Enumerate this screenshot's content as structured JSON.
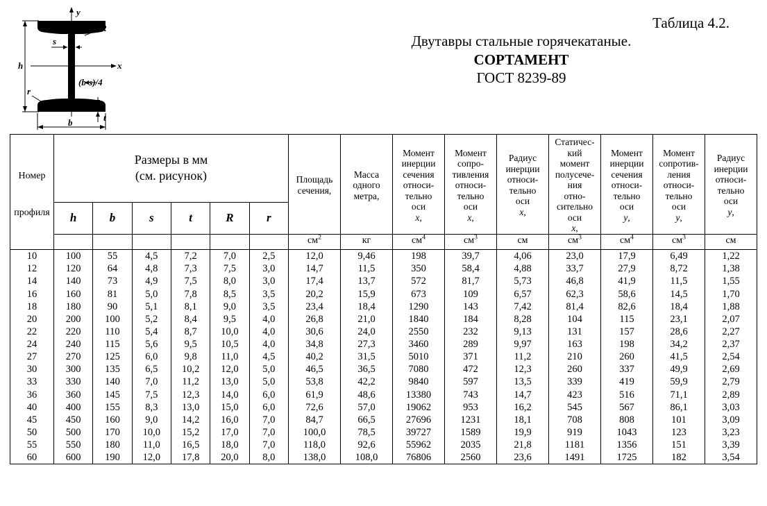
{
  "heading": {
    "table_no": "Таблица 4.2.",
    "subtitle": "Двутавры стальные горячекатаные.",
    "sortament": "СОРТАМЕНТ",
    "gost": "ГОСТ 8239-89"
  },
  "diagram_labels": {
    "y": "y",
    "R": "R",
    "s": "s",
    "x": "x",
    "h": "h",
    "bs4": "(b-s)/4",
    "r": "r",
    "t": "t",
    "b": "b"
  },
  "table": {
    "col_profile_top": "Номер",
    "col_profile_bot": "профиля",
    "dim_header_l1": "Размеры в мм",
    "dim_header_l2": "(см. рисунок)",
    "dim_labels": [
      "h",
      "b",
      "s",
      "t",
      "R",
      "r"
    ],
    "value_headers": [
      "Площадь сечения,",
      "Масса одного метра,",
      "Момент инерции сечения относи- тельно оси <i>x</i>,",
      "Момент сопро- тивления относи- тельно оси <i>x</i>,",
      "Радиус инерции относи- тельно оси <i>x</i>,",
      "Статичес- кий момент полусече- ния отно- сительно оси <i>x</i>,",
      "Момент инерции сечения относи- тельно оси <i>y</i>,",
      "Момент сопротив- ления относи- тельно оси <i>y</i>,",
      "Радиус инерции относи- тельно оси <i>y</i>,"
    ],
    "value_units": [
      "см<sup>2</sup>",
      "кг",
      "см<sup>4</sup>",
      "см<sup>3</sup>",
      "см",
      "см<sup>3</sup>",
      "см<sup>4</sup>",
      "см<sup>3</sup>",
      "см"
    ],
    "rows": [
      [
        "10",
        "100",
        "55",
        "4,5",
        "7,2",
        "7,0",
        "2,5",
        "12,0",
        "9,46",
        "198",
        "39,7",
        "4,06",
        "23,0",
        "17,9",
        "6,49",
        "1,22"
      ],
      [
        "12",
        "120",
        "64",
        "4,8",
        "7,3",
        "7,5",
        "3,0",
        "14,7",
        "11,5",
        "350",
        "58,4",
        "4,88",
        "33,7",
        "27,9",
        "8,72",
        "1,38"
      ],
      [
        "14",
        "140",
        "73",
        "4,9",
        "7,5",
        "8,0",
        "3,0",
        "17,4",
        "13,7",
        "572",
        "81,7",
        "5,73",
        "46,8",
        "41,9",
        "11,5",
        "1,55"
      ],
      [
        "16",
        "160",
        "81",
        "5,0",
        "7,8",
        "8,5",
        "3,5",
        "20,2",
        "15,9",
        "673",
        "109",
        "6,57",
        "62,3",
        "58,6",
        "14,5",
        "1,70"
      ],
      [
        "18",
        "180",
        "90",
        "5,1",
        "8,1",
        "9,0",
        "3,5",
        "23,4",
        "18,4",
        "1290",
        "143",
        "7,42",
        "81,4",
        "82,6",
        "18,4",
        "1,88"
      ],
      [
        "20",
        "200",
        "100",
        "5,2",
        "8,4",
        "9,5",
        "4,0",
        "26,8",
        "21,0",
        "1840",
        "184",
        "8,28",
        "104",
        "115",
        "23,1",
        "2,07"
      ],
      [
        "22",
        "220",
        "110",
        "5,4",
        "8,7",
        "10,0",
        "4,0",
        "30,6",
        "24,0",
        "2550",
        "232",
        "9,13",
        "131",
        "157",
        "28,6",
        "2,27"
      ],
      [
        "24",
        "240",
        "115",
        "5,6",
        "9,5",
        "10,5",
        "4,0",
        "34,8",
        "27,3",
        "3460",
        "289",
        "9,97",
        "163",
        "198",
        "34,2",
        "2,37"
      ],
      [
        "27",
        "270",
        "125",
        "6,0",
        "9,8",
        "11,0",
        "4,5",
        "40,2",
        "31,5",
        "5010",
        "371",
        "11,2",
        "210",
        "260",
        "41,5",
        "2,54"
      ],
      [
        "30",
        "300",
        "135",
        "6,5",
        "10,2",
        "12,0",
        "5,0",
        "46,5",
        "36,5",
        "7080",
        "472",
        "12,3",
        "260",
        "337",
        "49,9",
        "2,69"
      ],
      [
        "33",
        "330",
        "140",
        "7,0",
        "11,2",
        "13,0",
        "5,0",
        "53,8",
        "42,2",
        "9840",
        "597",
        "13,5",
        "339",
        "419",
        "59,9",
        "2,79"
      ],
      [
        "36",
        "360",
        "145",
        "7,5",
        "12,3",
        "14,0",
        "6,0",
        "61,9",
        "48,6",
        "13380",
        "743",
        "14,7",
        "423",
        "516",
        "71,1",
        "2,89"
      ],
      [
        "40",
        "400",
        "155",
        "8,3",
        "13,0",
        "15,0",
        "6,0",
        "72,6",
        "57,0",
        "19062",
        "953",
        "16,2",
        "545",
        "567",
        "86,1",
        "3,03"
      ],
      [
        "45",
        "450",
        "160",
        "9,0",
        "14,2",
        "16,0",
        "7,0",
        "84,7",
        "66,5",
        "27696",
        "1231",
        "18,1",
        "708",
        "808",
        "101",
        "3,09"
      ],
      [
        "50",
        "500",
        "170",
        "10,0",
        "15,2",
        "17,0",
        "7,0",
        "100,0",
        "78,5",
        "39727",
        "1589",
        "19,9",
        "919",
        "1043",
        "123",
        "3,23"
      ],
      [
        "55",
        "550",
        "180",
        "11,0",
        "16,5",
        "18,0",
        "7,0",
        "118,0",
        "92,6",
        "55962",
        "2035",
        "21,8",
        "1181",
        "1356",
        "151",
        "3,39"
      ],
      [
        "60",
        "600",
        "190",
        "12,0",
        "17,8",
        "20,0",
        "8,0",
        "138,0",
        "108,0",
        "76806",
        "2560",
        "23,6",
        "1491",
        "1725",
        "182",
        "3,54"
      ]
    ]
  },
  "style": {
    "page_bg": "#ffffff",
    "text_color": "#000000",
    "border_color": "#000000",
    "heading_fontsize": 21,
    "table_fontsize": 14.5,
    "dim_label_fontsize": 17,
    "small_head_fontsize": 13.5
  }
}
